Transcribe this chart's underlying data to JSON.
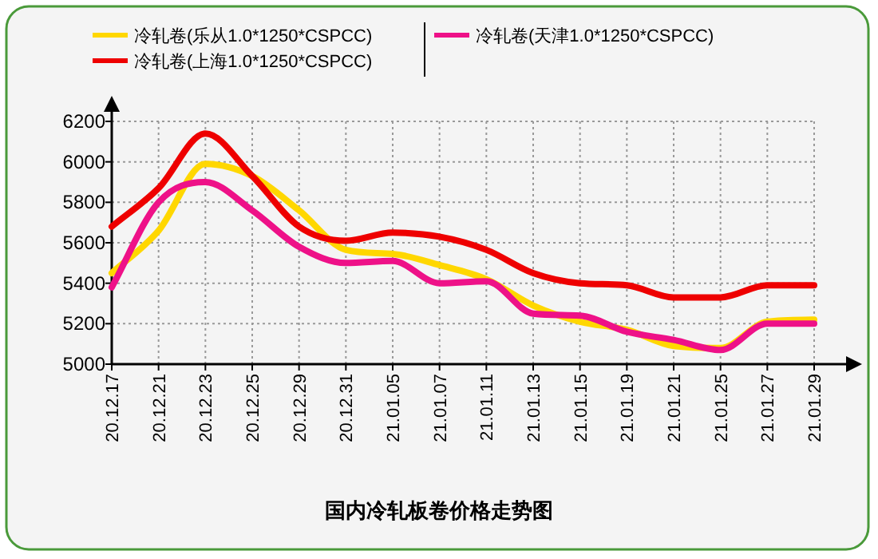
{
  "chart_data": {
    "type": "line",
    "title": "国内冷轧板卷价格走势图",
    "categories": [
      "20.12.17",
      "20.12.21",
      "20.12.23",
      "20.12.25",
      "20.12.29",
      "20.12.31",
      "21.01.05",
      "21.01.07",
      "21.01.11",
      "21.01.13",
      "21.01.15",
      "21.01.19",
      "21.01.21",
      "21.01.25",
      "21.01.27",
      "21.01.29"
    ],
    "series": [
      {
        "name": "冷轧卷(乐从1.0*1250*CSPCC)",
        "color": "#ffd700",
        "values": [
          5450,
          5660,
          5990,
          5930,
          5760,
          5565,
          5545,
          5490,
          5420,
          5290,
          5210,
          5170,
          5090,
          5080,
          5210,
          5220
        ]
      },
      {
        "name": "冷轧卷(上海1.0*1250*CSPCC)",
        "color": "#ee0000",
        "values": [
          5680,
          5870,
          6140,
          5930,
          5680,
          5610,
          5650,
          5630,
          5565,
          5450,
          5400,
          5390,
          5330,
          5330,
          5390,
          5390
        ]
      },
      {
        "name": "冷轧卷(天津1.0*1250*CSPCC)",
        "color": "#ee1188",
        "values": [
          5380,
          5800,
          5900,
          5760,
          5580,
          5500,
          5510,
          5400,
          5410,
          5250,
          5240,
          5160,
          5120,
          5070,
          5200,
          5200
        ]
      }
    ],
    "ylim": [
      5000,
      6200
    ],
    "yticks": [
      5000,
      5200,
      5400,
      5600,
      5800,
      6000,
      6200
    ],
    "grid": true,
    "legend": "top",
    "marker": "none",
    "line_style": "solid"
  }
}
